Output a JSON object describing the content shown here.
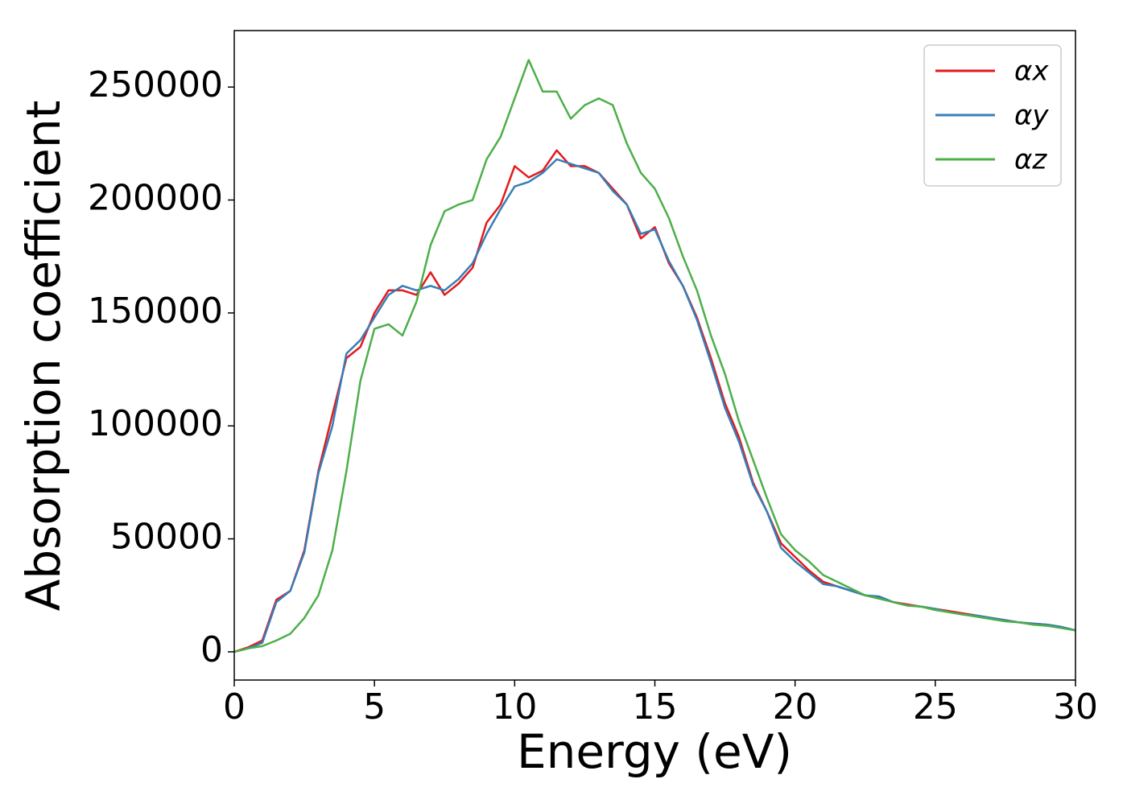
{
  "chart_data": {
    "type": "line",
    "xlabel": "Energy (eV)",
    "ylabel": "Absorption coefficient",
    "x": [
      0,
      0.5,
      1,
      1.5,
      2,
      2.5,
      3,
      3.5,
      4,
      4.5,
      5,
      5.5,
      6,
      6.5,
      7,
      7.5,
      8,
      8.5,
      9,
      9.5,
      10,
      10.5,
      11,
      11.5,
      12,
      12.5,
      13,
      13.5,
      14,
      14.5,
      15,
      15.5,
      16,
      16.5,
      17,
      17.5,
      18,
      18.5,
      19,
      19.5,
      20,
      20.5,
      21,
      21.5,
      22,
      22.5,
      23,
      23.5,
      24,
      24.5,
      25,
      25.5,
      26,
      26.5,
      27,
      27.5,
      28,
      28.5,
      29,
      29.5,
      30
    ],
    "series": [
      {
        "name": "αx",
        "color": "#e41a1c",
        "values": [
          0,
          2000,
          5000,
          23000,
          27000,
          45000,
          80000,
          105000,
          130000,
          135000,
          150000,
          160000,
          160000,
          158000,
          168000,
          158000,
          163000,
          170000,
          190000,
          198000,
          215000,
          210000,
          213000,
          222000,
          215000,
          215000,
          212000,
          205000,
          198000,
          183000,
          188000,
          172000,
          162000,
          148000,
          130000,
          110000,
          95000,
          75000,
          62000,
          48000,
          42000,
          36000,
          31000,
          29000,
          27000,
          25000,
          24000,
          22000,
          21000,
          20000,
          19000,
          18000,
          17000,
          16000,
          15000,
          14000,
          13000,
          12500,
          12000,
          11000,
          9500
        ]
      },
      {
        "name": "αy",
        "color": "#377eb8",
        "values": [
          0,
          1500,
          4000,
          22000,
          27000,
          44000,
          79000,
          100000,
          132000,
          138000,
          148000,
          158000,
          162000,
          160000,
          162000,
          160000,
          165000,
          172000,
          185000,
          196000,
          206000,
          208000,
          212000,
          218000,
          216000,
          214000,
          212000,
          204000,
          198000,
          185000,
          187000,
          173000,
          162000,
          147000,
          128000,
          108000,
          93000,
          74000,
          62000,
          46000,
          40000,
          35000,
          30000,
          29000,
          27000,
          25000,
          24500,
          22000,
          20500,
          20000,
          19000,
          17500,
          16500,
          16000,
          15000,
          14000,
          13000,
          12500,
          12000,
          11000,
          9500
        ]
      },
      {
        "name": "αz",
        "color": "#4daf4a",
        "values": [
          0,
          1500,
          2500,
          5000,
          8000,
          15000,
          25000,
          45000,
          80000,
          120000,
          143000,
          145000,
          140000,
          155000,
          180000,
          195000,
          198000,
          200000,
          218000,
          228000,
          245000,
          262000,
          248000,
          248000,
          236000,
          242000,
          245000,
          242000,
          225000,
          212000,
          205000,
          192000,
          175000,
          160000,
          140000,
          123000,
          102000,
          85000,
          68000,
          52000,
          45000,
          40000,
          34000,
          31000,
          28000,
          25000,
          23500,
          22000,
          20500,
          20000,
          18500,
          17500,
          16500,
          15500,
          14500,
          13500,
          13000,
          12000,
          11500,
          10500,
          9500
        ]
      }
    ],
    "xlim": [
      0,
      30
    ],
    "ylim": [
      -12500,
      275000
    ],
    "xticks": [
      0,
      5,
      10,
      15,
      20,
      25,
      30
    ],
    "yticks": [
      0,
      50000,
      100000,
      150000,
      200000,
      250000
    ],
    "legend": "upper right"
  }
}
